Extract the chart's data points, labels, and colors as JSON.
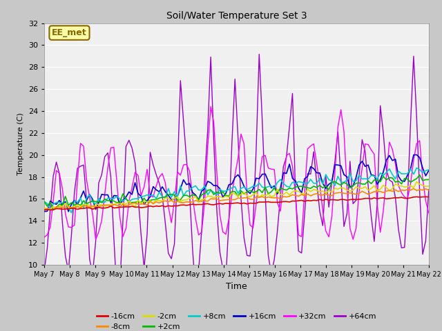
{
  "title": "Soil/Water Temperature Set 3",
  "xlabel": "Time",
  "ylabel": "Temperature (C)",
  "ylim": [
    10,
    32
  ],
  "background_color": "#f0f0f0",
  "plot_bg_color": "#f0f0f0",
  "fig_bg_color": "#c8c8c8",
  "annotation_text": "EE_met",
  "annotation_bg": "#ffffaa",
  "annotation_border": "#886600",
  "x_tick_labels": [
    "May 7",
    "May 8",
    "May 9",
    "May 10",
    "May 11",
    "May 12",
    "May 13",
    "May 14",
    "May 15",
    "May 16",
    "May 17",
    "May 18",
    "May 19",
    "May 20",
    "May 21",
    "May 22"
  ],
  "series_order": [
    "-16cm",
    "-8cm",
    "-2cm",
    "+2cm",
    "+8cm",
    "+16cm",
    "+32cm",
    "+64cm"
  ],
  "series": {
    "-16cm": {
      "color": "#dd0000",
      "linewidth": 1.2
    },
    "-8cm": {
      "color": "#ff8800",
      "linewidth": 1.2
    },
    "-2cm": {
      "color": "#dddd00",
      "linewidth": 1.2
    },
    "+2cm": {
      "color": "#00bb00",
      "linewidth": 1.2
    },
    "+8cm": {
      "color": "#00cccc",
      "linewidth": 1.2
    },
    "+16cm": {
      "color": "#0000cc",
      "linewidth": 1.2
    },
    "+32cm": {
      "color": "#ff00ff",
      "linewidth": 1.0
    },
    "+64cm": {
      "color": "#9900cc",
      "linewidth": 1.0
    }
  },
  "legend_row1": [
    "-16cm",
    "-8cm",
    "-2cm",
    "+2cm",
    "+8cm",
    "+16cm"
  ],
  "legend_row2": [
    "+32cm",
    "+64cm"
  ]
}
